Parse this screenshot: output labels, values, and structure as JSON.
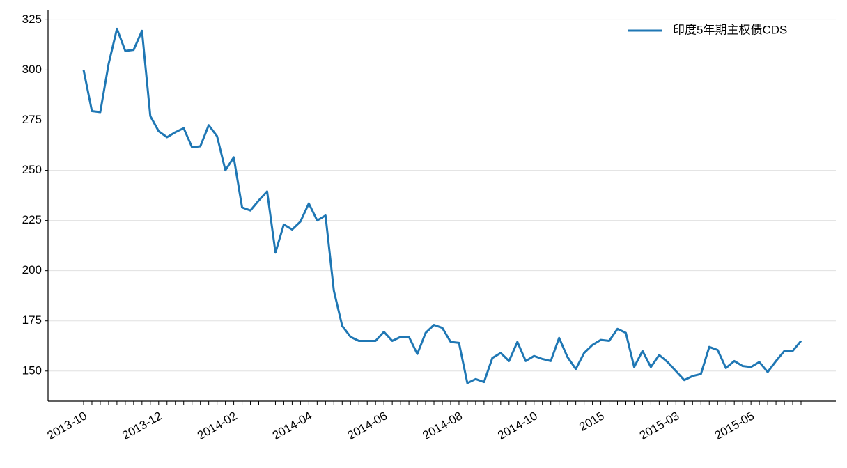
{
  "chart_data": {
    "type": "line",
    "categories": [
      "2013-10",
      null,
      null,
      null,
      null,
      null,
      null,
      null,
      null,
      "2013-12",
      null,
      null,
      null,
      null,
      null,
      null,
      null,
      null,
      "2014-02",
      null,
      null,
      null,
      null,
      null,
      null,
      null,
      null,
      "2014-04",
      null,
      null,
      null,
      null,
      null,
      null,
      null,
      null,
      "2014-06",
      null,
      null,
      null,
      null,
      null,
      null,
      null,
      null,
      "2014-08",
      null,
      null,
      null,
      null,
      null,
      null,
      null,
      null,
      "2014-10",
      null,
      null,
      null,
      null,
      null,
      null,
      null,
      "2015",
      null,
      null,
      null,
      null,
      null,
      null,
      null,
      null,
      "2015-03",
      null,
      null,
      null,
      null,
      null,
      null,
      null,
      null,
      "2015-05",
      null,
      null,
      null,
      null,
      null,
      null
    ],
    "series": [
      {
        "name": "印度5年期主权债CDS",
        "color": "#1f77b4",
        "values": [
          300,
          279.5,
          279,
          303,
          320.5,
          309.5,
          310,
          319.5,
          277,
          269.5,
          266.5,
          269,
          271,
          261.5,
          262,
          272.5,
          267,
          250,
          256.5,
          231.5,
          230,
          235,
          239.5,
          209,
          223,
          220.5,
          224.5,
          233.5,
          225,
          227.5,
          190,
          172.5,
          167,
          165,
          165,
          165,
          169.5,
          165,
          167,
          167,
          158.5,
          169,
          173,
          171.5,
          164.5,
          164,
          144,
          146,
          144.5,
          156.5,
          159,
          155,
          164.5,
          155,
          157.5,
          156,
          155,
          166.5,
          157,
          151,
          159,
          163,
          165.5,
          165,
          171,
          169,
          152,
          160,
          152,
          158,
          154.5,
          150,
          145.5,
          147.5,
          148.5,
          162,
          160.5,
          151.5,
          155,
          152.5,
          152,
          154.5,
          149.5,
          155,
          160,
          160,
          165
        ]
      }
    ],
    "ylim": [
      135,
      330
    ],
    "yticks": [
      150,
      175,
      200,
      225,
      250,
      275,
      300,
      325
    ],
    "grid": true,
    "legend": "upper right"
  }
}
